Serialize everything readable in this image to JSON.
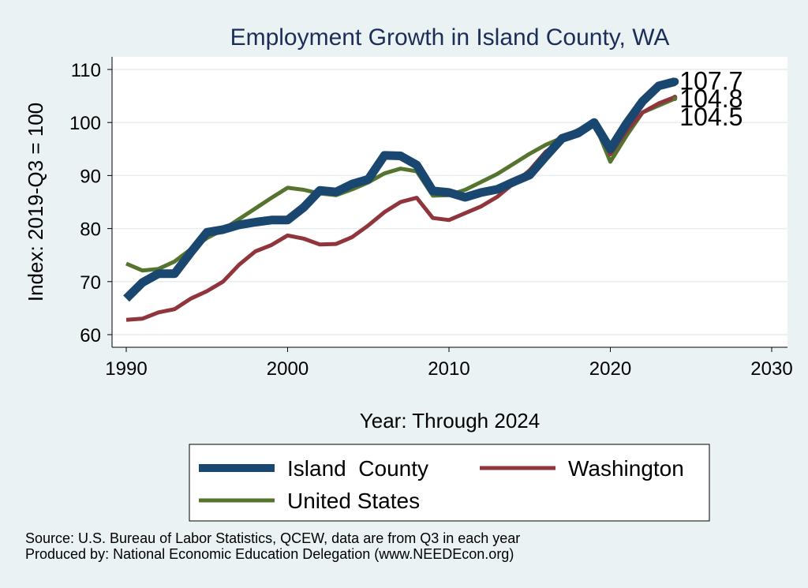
{
  "chart_data": {
    "type": "line",
    "title": "Employment Growth in Island County, WA",
    "xlabel": "Year: Through 2024",
    "ylabel": "Index: 2019-Q3 = 100",
    "xlim": [
      1990,
      2030
    ],
    "ylim": [
      60,
      110
    ],
    "x_ticks": [
      1990,
      2000,
      2010,
      2020,
      2030
    ],
    "y_ticks": [
      60,
      70,
      80,
      90,
      100,
      110
    ],
    "grid": true,
    "legend_position": "bottom",
    "x": [
      1990,
      1991,
      1992,
      1993,
      1994,
      1995,
      1996,
      1997,
      1998,
      1999,
      2000,
      2001,
      2002,
      2003,
      2004,
      2005,
      2006,
      2007,
      2008,
      2009,
      2010,
      2011,
      2012,
      2013,
      2014,
      2015,
      2016,
      2017,
      2018,
      2019,
      2020,
      2021,
      2022,
      2023,
      2024
    ],
    "series": [
      {
        "name": "Island  County",
        "color": "#1a476f",
        "values": [
          66.8,
          69.8,
          71.5,
          71.5,
          75.5,
          79.3,
          79.8,
          80.7,
          81.2,
          81.6,
          81.6,
          84.0,
          87.2,
          86.9,
          88.4,
          89.3,
          93.8,
          93.7,
          92.0,
          87.1,
          86.8,
          85.9,
          86.8,
          87.4,
          88.8,
          90.1,
          93.6,
          97.0,
          98.0,
          100.0,
          95.0,
          99.8,
          104.0,
          106.9,
          107.7
        ]
      },
      {
        "name": "Washington",
        "color": "#90353b",
        "values": [
          62.8,
          63.0,
          64.2,
          64.8,
          66.8,
          68.2,
          70.0,
          73.2,
          75.7,
          76.9,
          78.7,
          78.1,
          77.0,
          77.1,
          78.4,
          80.6,
          83.1,
          85.0,
          85.8,
          82.0,
          81.6,
          82.9,
          84.2,
          86.0,
          88.5,
          91.0,
          94.5,
          96.8,
          98.5,
          100.0,
          94.0,
          98.4,
          101.9,
          103.6,
          104.8
        ]
      },
      {
        "name": "United States",
        "color": "#55752f",
        "values": [
          73.4,
          72.1,
          72.4,
          73.8,
          76.1,
          78.2,
          79.8,
          81.8,
          83.8,
          85.8,
          87.7,
          87.3,
          86.6,
          86.3,
          87.4,
          88.7,
          90.4,
          91.3,
          90.8,
          86.2,
          86.3,
          87.3,
          88.8,
          90.3,
          92.2,
          94.1,
          95.8,
          97.1,
          98.6,
          100.0,
          92.6,
          97.5,
          101.9,
          103.2,
          104.5
        ]
      }
    ],
    "end_labels": [
      "107.7",
      "104.8",
      "104.5"
    ]
  },
  "footer": {
    "source": "Source: U.S. Bureau of Labor Statistics, QCEW, data are from Q3 in each year",
    "produced_by": "Produced by: National Economic Education Delegation (www.NEEDEcon.org)"
  }
}
